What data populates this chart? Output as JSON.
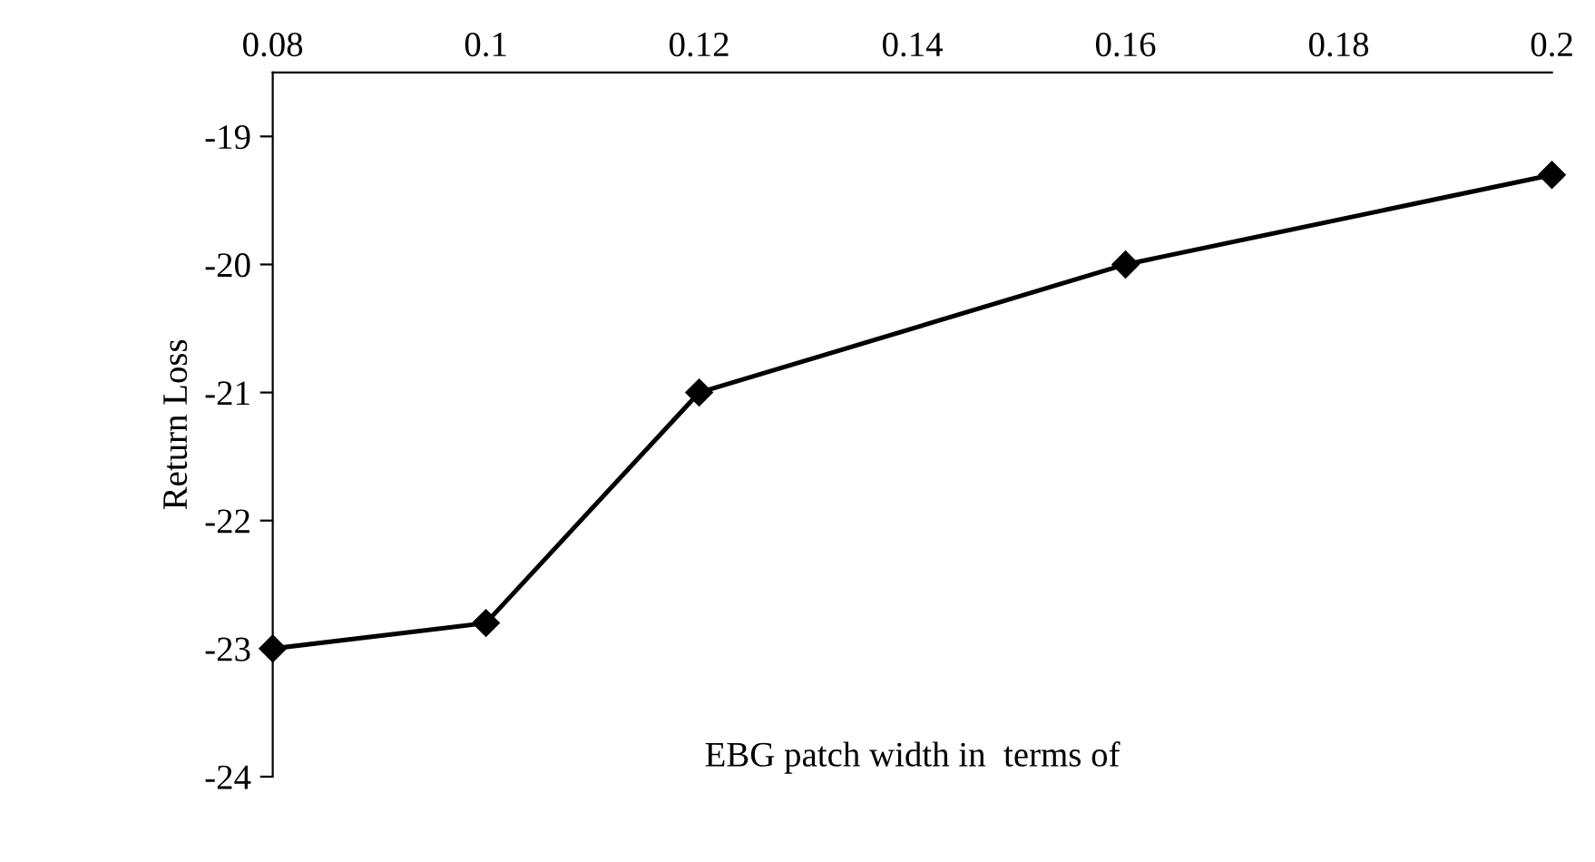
{
  "chart_data": {
    "type": "line",
    "xlabel": "EBG patch width in  terms of",
    "ylabel": "Return Loss",
    "x": [
      0.08,
      0.1,
      0.12,
      0.16,
      0.2
    ],
    "series": [
      {
        "color": "#000000",
        "values": [
          -23,
          -22.8,
          -21,
          -20,
          -19.3
        ]
      }
    ],
    "xlim": [
      0.08,
      0.2
    ],
    "xticks": [
      0.08,
      0.1,
      0.12,
      0.14,
      0.16,
      0.18,
      0.2
    ],
    "ylim": [
      -24,
      -18.5
    ],
    "yticks": [
      -24,
      -23,
      -22,
      -21,
      -20,
      -19
    ],
    "marker": "diamond",
    "line_style": "solid",
    "grid": false,
    "legend": false
  }
}
